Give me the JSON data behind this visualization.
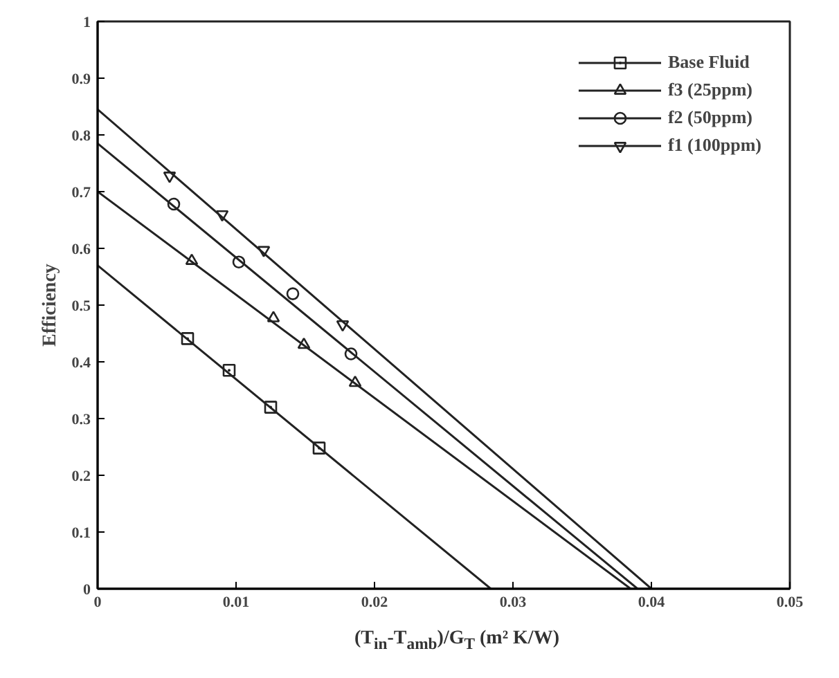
{
  "chart_data": {
    "type": "scatter",
    "xlabel": "(T$_{in}$-T$_{amb}$)/G$_{T}$ (m² K/W)",
    "ylabel": "Efficiency",
    "xlim": [
      0,
      0.05
    ],
    "ylim": [
      0,
      1
    ],
    "xticks": [
      0,
      0.01,
      0.02,
      0.03,
      0.04,
      0.05
    ],
    "yticks": [
      0,
      0.1,
      0.2,
      0.3,
      0.4,
      0.5,
      0.6,
      0.7,
      0.8,
      0.9,
      1
    ],
    "grid": false,
    "legend": "top right",
    "series": [
      {
        "name": "Base Fluid",
        "color": "#222222",
        "marker": "square",
        "x": [
          0.0065,
          0.0095,
          0.0125,
          0.016
        ],
        "values": [
          0.441,
          0.385,
          0.32,
          0.248
        ]
      },
      {
        "type": "line",
        "color": "#222222",
        "marker": "none",
        "x": [
          0,
          0.0284
        ],
        "values": [
          0.57,
          0
        ]
      },
      {
        "name": "f3 (25ppm)",
        "color": "#222222",
        "marker": "triangle",
        "x": [
          0.0068,
          0.0127,
          0.0149,
          0.0186
        ],
        "values": [
          0.578,
          0.477,
          0.43,
          0.363
        ]
      },
      {
        "type": "line",
        "color": "#222222",
        "marker": "none",
        "x": [
          0,
          0.0385
        ],
        "values": [
          0.7,
          0
        ]
      },
      {
        "name": "f2 (50ppm)",
        "color": "#222222",
        "marker": "circle",
        "x": [
          0.0055,
          0.0102,
          0.0141,
          0.0183
        ],
        "values": [
          0.678,
          0.576,
          0.52,
          0.414
        ]
      },
      {
        "type": "line",
        "color": "#222222",
        "marker": "none",
        "x": [
          0,
          0.039
        ],
        "values": [
          0.785,
          0
        ]
      },
      {
        "name": "f1 (100ppm)",
        "color": "#222222",
        "marker": "triangle_down",
        "x": [
          0.0052,
          0.009,
          0.012,
          0.0177
        ],
        "values": [
          0.728,
          0.66,
          0.597,
          0.466
        ]
      },
      {
        "type": "line",
        "color": "#222222",
        "marker": "none",
        "x": [
          0,
          0.04
        ],
        "values": [
          0.845,
          0
        ]
      }
    ]
  }
}
